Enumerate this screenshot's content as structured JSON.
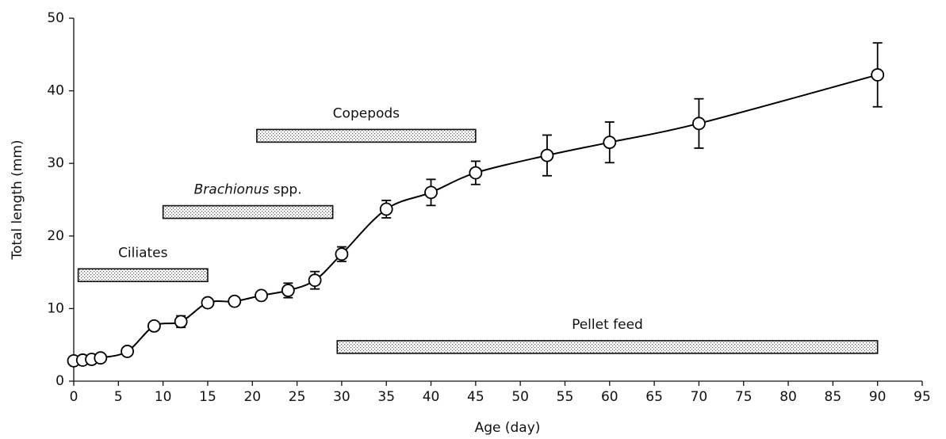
{
  "chart_data": {
    "type": "line",
    "xlabel": "Age (day)",
    "ylabel": "Total length (mm)",
    "x": [
      0,
      1,
      2,
      3,
      6,
      9,
      12,
      15,
      18,
      21,
      24,
      27,
      30,
      35,
      40,
      45,
      53,
      60,
      70,
      90
    ],
    "series": [
      {
        "name": "Total length",
        "color": "#000000",
        "values": [
          2.8,
          2.9,
          3.0,
          3.2,
          4.1,
          7.6,
          8.2,
          10.8,
          11.0,
          11.8,
          12.5,
          13.9,
          17.5,
          23.7,
          26.0,
          28.7,
          31.1,
          32.9,
          35.5,
          42.2
        ],
        "errors": [
          null,
          null,
          null,
          null,
          null,
          null,
          0.8,
          null,
          null,
          null,
          1.0,
          1.2,
          1.0,
          1.2,
          1.8,
          1.6,
          2.8,
          2.8,
          3.4,
          4.4
        ]
      }
    ],
    "xlim": [
      0,
      95
    ],
    "xticks": [
      0,
      5,
      10,
      15,
      20,
      25,
      30,
      35,
      40,
      45,
      50,
      55,
      60,
      65,
      70,
      75,
      80,
      85,
      90,
      95
    ],
    "ylim": [
      0,
      50
    ],
    "yticks": [
      0,
      10,
      20,
      30,
      40,
      50
    ],
    "feeding_periods": [
      {
        "label_parts": [
          {
            "text": "Ciliates",
            "italic": false
          }
        ],
        "start": 0.5,
        "end": 15,
        "level": 14.6
      },
      {
        "label_parts": [
          {
            "text": "Brachionus",
            "italic": true
          },
          {
            "text": " spp.",
            "italic": false
          }
        ],
        "start": 10,
        "end": 29,
        "level": 23.3
      },
      {
        "label_parts": [
          {
            "text": "Copepods",
            "italic": false
          }
        ],
        "start": 20.5,
        "end": 45,
        "level": 33.8
      },
      {
        "label_parts": [
          {
            "text": "Pellet feed",
            "italic": false
          }
        ],
        "start": 29.5,
        "end": 90,
        "level": 4.7
      }
    ]
  }
}
